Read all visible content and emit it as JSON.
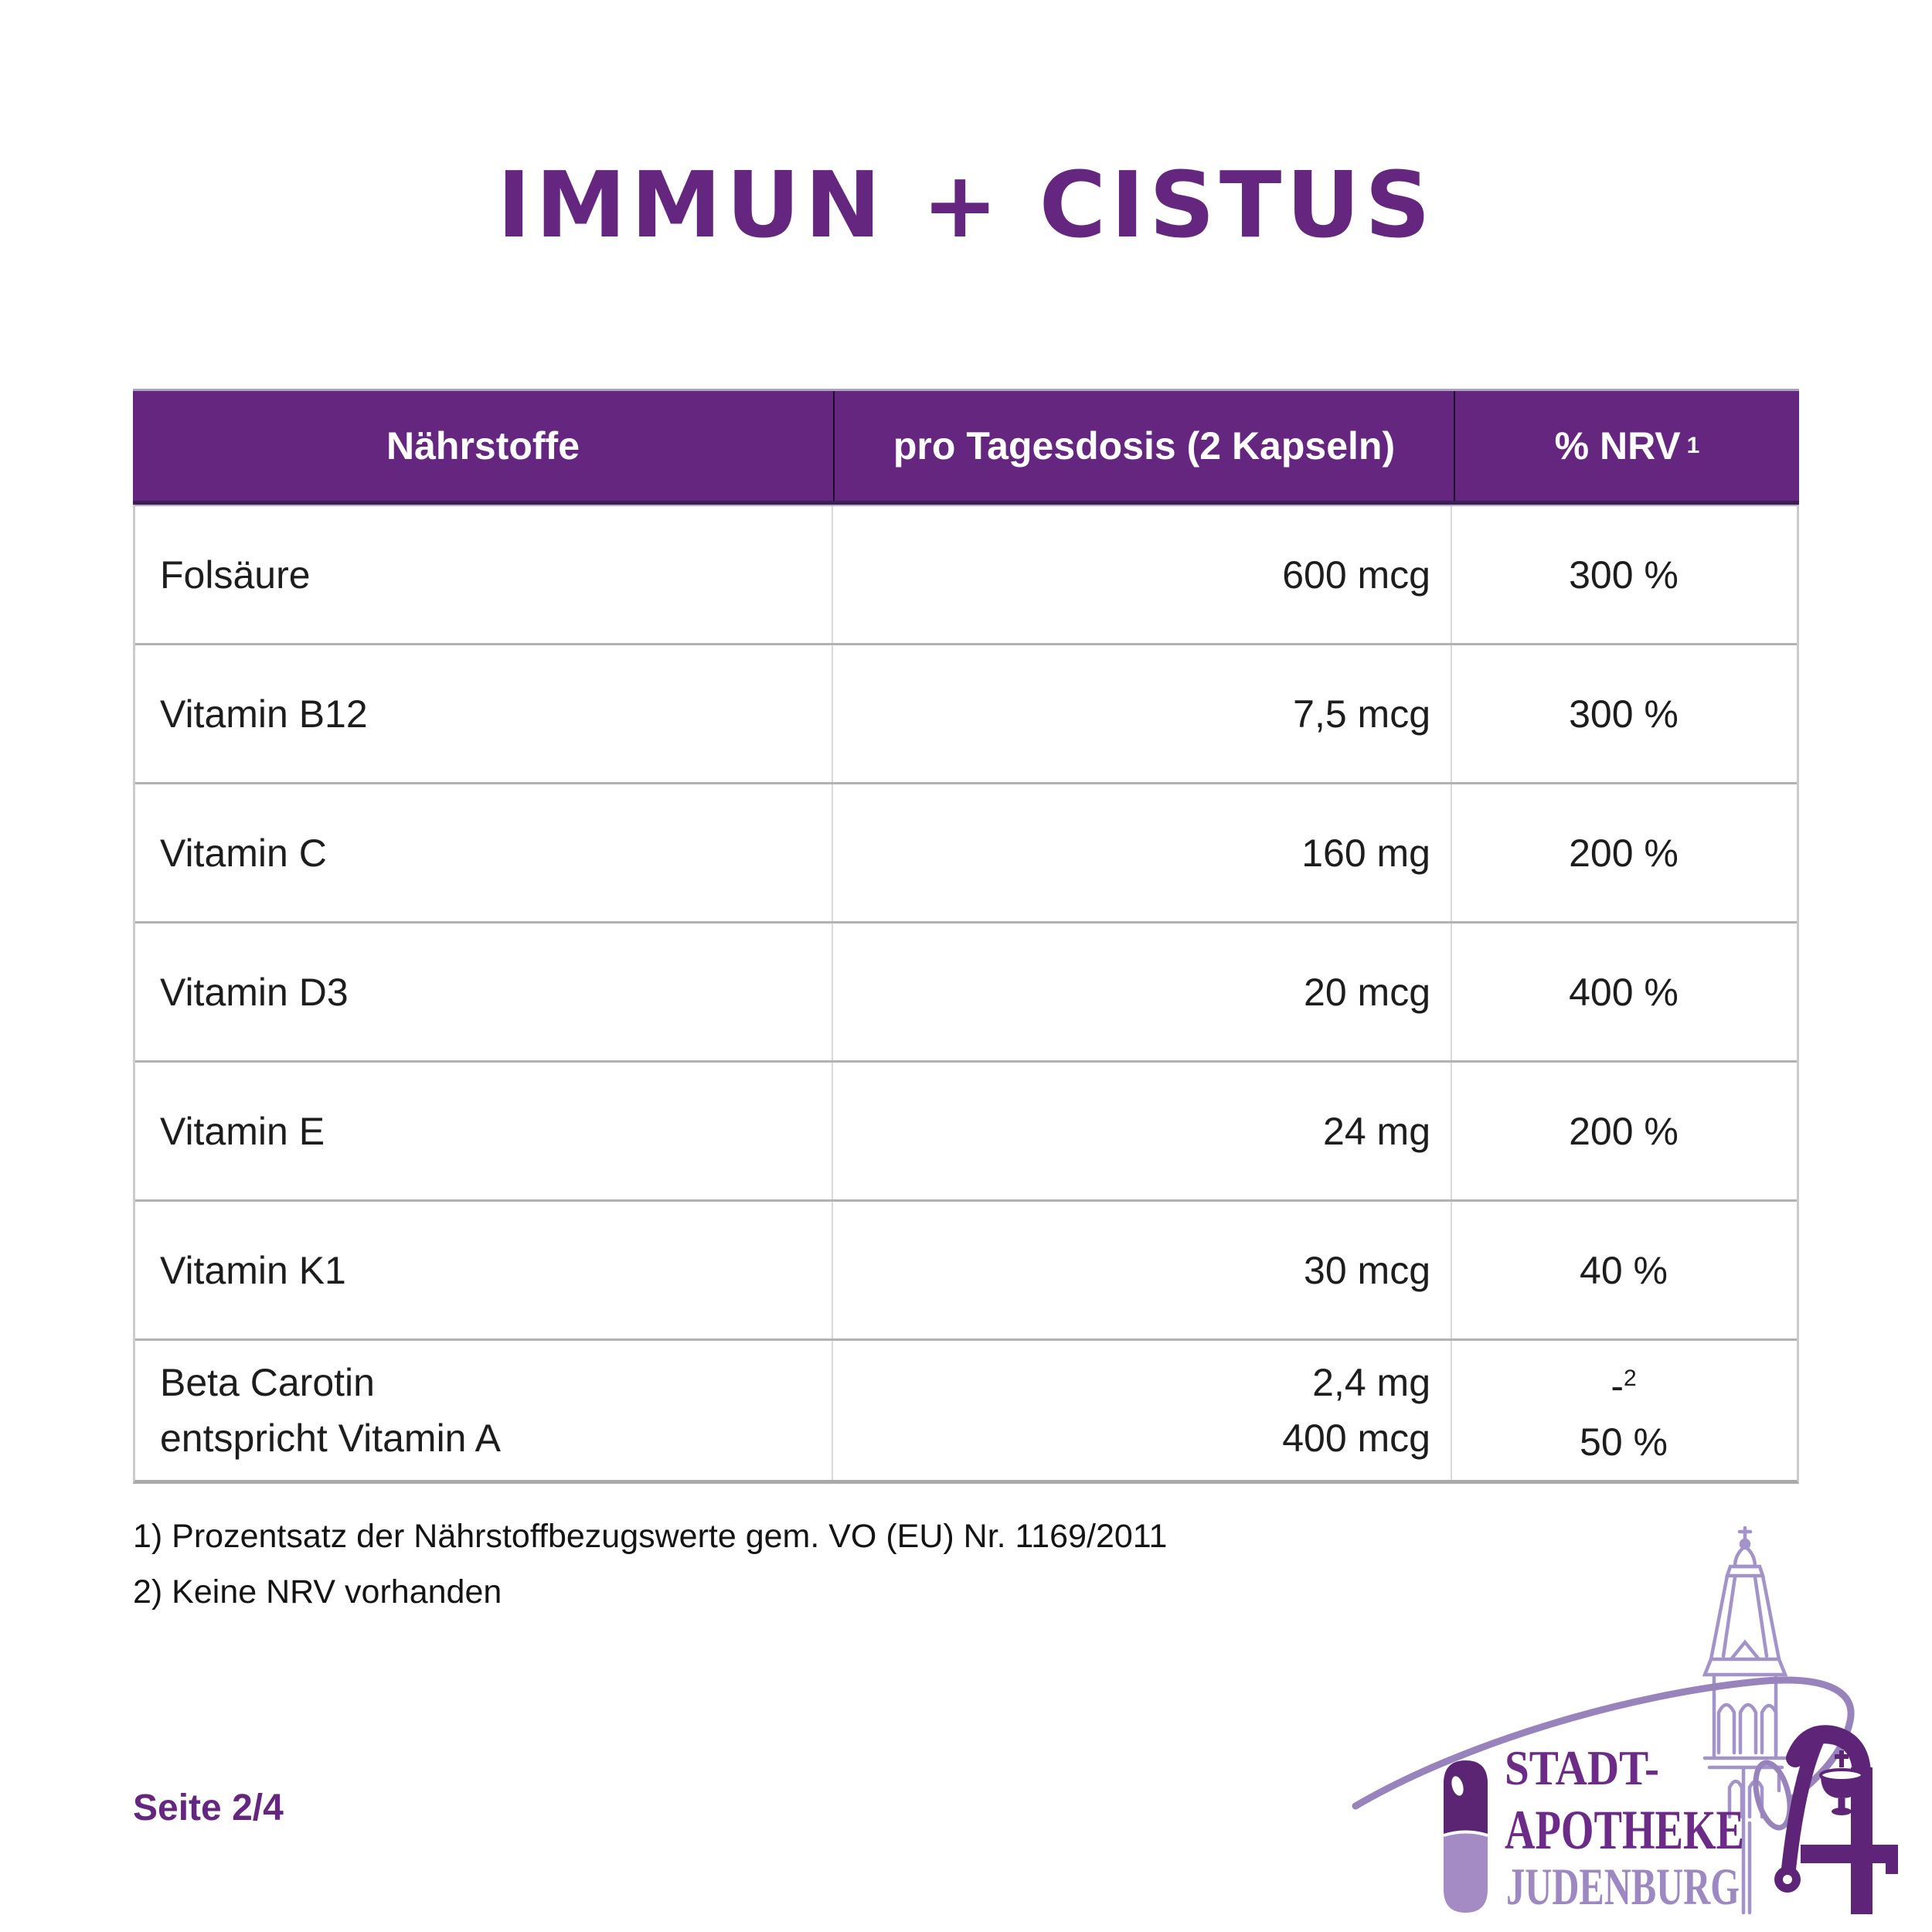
{
  "title": "IMMUN + CISTUS",
  "table": {
    "headers": [
      "Nährstoffe",
      "pro Tagesdosis (2 Kapseln)",
      "% NRV"
    ],
    "header_sup": "1",
    "rows": [
      {
        "cells": [
          [
            "Folsäure"
          ],
          [
            "600 mcg"
          ],
          [
            "300 %"
          ]
        ]
      },
      {
        "cells": [
          [
            "Vitamin B12"
          ],
          [
            "7,5 mcg"
          ],
          [
            "300 %"
          ]
        ]
      },
      {
        "cells": [
          [
            "Vitamin C"
          ],
          [
            "160 mg"
          ],
          [
            "200 %"
          ]
        ]
      },
      {
        "cells": [
          [
            "Vitamin D3"
          ],
          [
            "20 mcg"
          ],
          [
            "400 %"
          ]
        ]
      },
      {
        "cells": [
          [
            "Vitamin E"
          ],
          [
            "24 mg"
          ],
          [
            "200 %"
          ]
        ]
      },
      {
        "cells": [
          [
            "Vitamin K1"
          ],
          [
            "30 mcg"
          ],
          [
            "40 %"
          ]
        ]
      },
      {
        "cells": [
          [
            "Beta Carotin",
            "entspricht Vitamin A"
          ],
          [
            "2,4 mg",
            "400 mcg"
          ],
          [
            {
              "text": "-",
              "sup": "2"
            },
            "50 %"
          ]
        ]
      }
    ]
  },
  "footnotes": [
    "1) Prozentsatz der Nährstoffbezugswerte gem. VO (EU) Nr. 1169/2011",
    "2) Keine NRV vorhanden"
  ],
  "page_label": "Seite 2/4",
  "logo": {
    "line1": "STADT-",
    "line2": "APOTHEKE",
    "line3": "JUDENBURG"
  },
  "colors": {
    "brand_purple": "#652680",
    "dark_logo_purple": "#5e2478",
    "light_logo_purple": "#9d88c1",
    "tower_outline": "#a493c9",
    "header_border_dark": "#3b1f55",
    "grid_gray": "#b3b1b5",
    "text_black": "#1d1d1d"
  }
}
